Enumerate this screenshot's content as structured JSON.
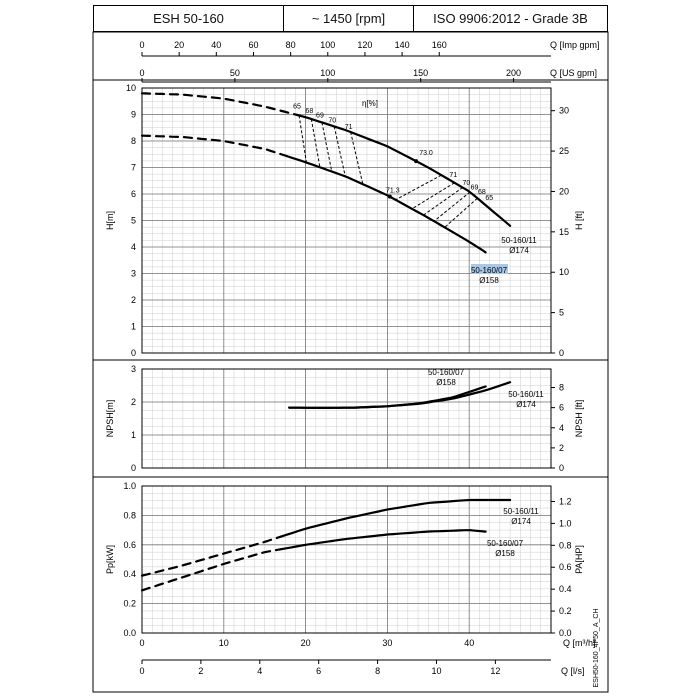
{
  "header": {
    "model": "ESH 50-160",
    "speed": "~ 1450 [rpm]",
    "standard": "ISO 9906:2012 - Grade 3B"
  },
  "side_code": "ESH50-160_4P50_A_CH",
  "colors": {
    "line": "#000000",
    "grid_major": "#777777",
    "grid_minor": "#cccccc",
    "highlight": "#a8c8e8"
  },
  "axes": {
    "q_imp": {
      "label": "Q [Imp gpm]",
      "ticks": [
        "0",
        "20",
        "40",
        "60",
        "80",
        "100",
        "120",
        "140",
        "160"
      ],
      "values": [
        0,
        20,
        40,
        60,
        80,
        100,
        120,
        140,
        160
      ]
    },
    "q_us": {
      "label": "Q [US gpm]",
      "ticks": [
        "0",
        "50",
        "100",
        "150",
        "200"
      ],
      "values": [
        0,
        50,
        100,
        150,
        200
      ]
    },
    "q_m3h": {
      "label": "Q [m³/h]",
      "ticks": [
        "0",
        "10",
        "20",
        "30",
        "40"
      ],
      "values": [
        0,
        10,
        20,
        30,
        40
      ]
    },
    "q_ls": {
      "label": "Q [l/s]",
      "ticks": [
        "0",
        "2",
        "4",
        "6",
        "8",
        "10",
        "12"
      ],
      "values": [
        0,
        2,
        4,
        6,
        8,
        10,
        12
      ]
    }
  },
  "eta_label": "η[%]",
  "chart_data": [
    {
      "type": "line",
      "name": "head",
      "ylabel": "H[m]",
      "ylabel_right": "H [ft]",
      "xlim": [
        0,
        50
      ],
      "ylim": [
        0,
        10
      ],
      "yticks": [
        "0",
        "1",
        "2",
        "3",
        "4",
        "5",
        "6",
        "7",
        "8",
        "9",
        "10"
      ],
      "y2ticks": [
        "0",
        "5",
        "10",
        "15",
        "20",
        "25",
        "30"
      ],
      "y2_factor": 3.2808,
      "series": [
        {
          "name": "50-160/11",
          "dia": "Ø174",
          "dashed_until": 19,
          "x": [
            0,
            5,
            10,
            15,
            20,
            25,
            30,
            35,
            40,
            45
          ],
          "y": [
            9.8,
            9.75,
            9.6,
            9.3,
            8.9,
            8.4,
            7.8,
            7.0,
            6.1,
            4.8
          ]
        },
        {
          "name": "50-160/07",
          "dia": "Ø158",
          "dashed_until": 18,
          "x": [
            0,
            5,
            10,
            15,
            20,
            25,
            30,
            35,
            40,
            42
          ],
          "y": [
            8.2,
            8.15,
            8.0,
            7.7,
            7.2,
            6.65,
            5.95,
            5.1,
            4.2,
            3.8
          ]
        }
      ],
      "iso_efficiency": [
        {
          "label": "65",
          "x1": 19.2,
          "x2": 41.0
        },
        {
          "label": "68",
          "x1": 20.7,
          "x2": 40.1
        },
        {
          "label": "69",
          "x1": 22.0,
          "x2": 39.2
        },
        {
          "label": "70",
          "x1": 23.5,
          "x2": 38.2
        },
        {
          "label": "71",
          "x1": 25.5,
          "x2": 36.6
        }
      ],
      "bep": [
        {
          "label": "73.0",
          "x": 33.5,
          "curve": 0
        },
        {
          "label": "71.3",
          "x": 30.3,
          "curve": 1
        }
      ]
    },
    {
      "type": "line",
      "name": "npsh",
      "ylabel": "NPSH[m]",
      "ylabel_right": "NPSH [ft]",
      "xlim": [
        0,
        50
      ],
      "ylim": [
        0,
        3
      ],
      "yticks": [
        "0",
        "1",
        "2",
        "3"
      ],
      "y2ticks": [
        "0",
        "2",
        "4",
        "6",
        "8"
      ],
      "y2_factor": 3.2808,
      "series": [
        {
          "name": "50-160/07",
          "dia": "Ø158",
          "x": [
            18,
            22,
            26,
            30,
            34,
            38,
            42
          ],
          "y": [
            1.83,
            1.82,
            1.83,
            1.87,
            1.96,
            2.14,
            2.47
          ]
        },
        {
          "name": "50-160/11",
          "dia": "Ø174",
          "x": [
            18,
            22,
            26,
            30,
            34,
            38,
            42,
            45
          ],
          "y": [
            1.83,
            1.82,
            1.83,
            1.87,
            1.95,
            2.1,
            2.35,
            2.6
          ]
        }
      ]
    },
    {
      "type": "line",
      "name": "power",
      "ylabel": "Pp[kW]",
      "ylabel_right": "PA[HP]",
      "xlim": [
        0,
        50
      ],
      "ylim": [
        0,
        1
      ],
      "yticks": [
        "0.0",
        "0.2",
        "0.4",
        "0.6",
        "0.8",
        "1.0"
      ],
      "y2ticks": [
        "0.0",
        "0.2",
        "0.4",
        "0.6",
        "0.8",
        "1.0",
        "1.2"
      ],
      "y2_factor": 1.341,
      "series": [
        {
          "name": "50-160/11",
          "dia": "Ø174",
          "dashed_until": 17,
          "x": [
            0,
            5,
            10,
            15,
            20,
            25,
            30,
            35,
            40,
            45
          ],
          "y": [
            0.39,
            0.46,
            0.54,
            0.62,
            0.71,
            0.78,
            0.84,
            0.885,
            0.905,
            0.905
          ]
        },
        {
          "name": "50-160/07",
          "dia": "Ø158",
          "dashed_until": 17,
          "x": [
            0,
            5,
            10,
            15,
            20,
            25,
            30,
            35,
            40,
            42
          ],
          "y": [
            0.29,
            0.38,
            0.47,
            0.55,
            0.6,
            0.64,
            0.67,
            0.69,
            0.7,
            0.69
          ]
        }
      ]
    }
  ]
}
